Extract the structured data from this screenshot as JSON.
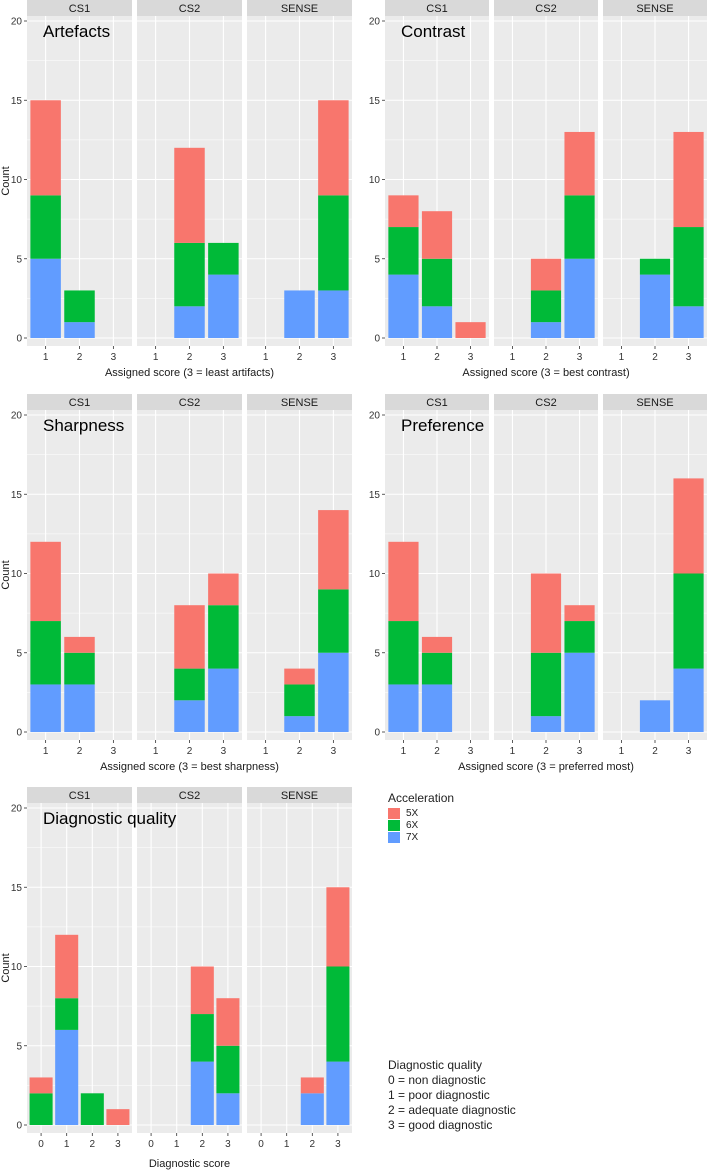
{
  "colors": {
    "5X": "#f8766d",
    "6X": "#00ba38",
    "7X": "#619cff"
  },
  "legend": {
    "title": "Acceleration",
    "items": [
      {
        "label": "5X",
        "color": "#f8766d"
      },
      {
        "label": "6X",
        "color": "#00ba38"
      },
      {
        "label": "7X",
        "color": "#619cff"
      }
    ]
  },
  "dq_legend": {
    "title": "Diagnostic quality",
    "lines": [
      "0 = non diagnostic",
      "1 = poor diagnostic",
      "2 = adequate diagnostic",
      "3 = good diagnostic"
    ]
  },
  "chart_data": [
    {
      "type": "bar",
      "stacked": true,
      "title": "Artefacts",
      "xlabel": "Assigned score (3 = least artifacts)",
      "ylabel": "Count",
      "ylim": [
        0,
        20
      ],
      "yticks": [
        0,
        5,
        10,
        15,
        20
      ],
      "categories": [
        "1",
        "2",
        "3"
      ],
      "facets": [
        {
          "name": "CS1",
          "series": {
            "7X": [
              5,
              1,
              0
            ],
            "6X": [
              4,
              2,
              0
            ],
            "5X": [
              6,
              0,
              0
            ]
          }
        },
        {
          "name": "CS2",
          "series": {
            "7X": [
              0,
              2,
              4
            ],
            "6X": [
              0,
              4,
              2
            ],
            "5X": [
              0,
              6,
              0
            ]
          }
        },
        {
          "name": "SENSE",
          "series": {
            "7X": [
              0,
              3,
              3
            ],
            "6X": [
              0,
              0,
              6
            ],
            "5X": [
              0,
              0,
              6
            ]
          }
        }
      ]
    },
    {
      "type": "bar",
      "stacked": true,
      "title": "Contrast",
      "xlabel": "Assigned score (3 = best contrast)",
      "ylabel": "",
      "ylim": [
        0,
        20
      ],
      "yticks": [
        0,
        5,
        10,
        15,
        20
      ],
      "categories": [
        "1",
        "2",
        "3"
      ],
      "facets": [
        {
          "name": "CS1",
          "series": {
            "7X": [
              4,
              2,
              0
            ],
            "6X": [
              3,
              3,
              0
            ],
            "5X": [
              2,
              3,
              1
            ]
          }
        },
        {
          "name": "CS2",
          "series": {
            "7X": [
              0,
              1,
              5
            ],
            "6X": [
              0,
              2,
              4
            ],
            "5X": [
              0,
              2,
              4
            ]
          }
        },
        {
          "name": "SENSE",
          "series": {
            "7X": [
              0,
              4,
              2
            ],
            "6X": [
              0,
              1,
              5
            ],
            "5X": [
              0,
              0,
              6
            ]
          }
        }
      ]
    },
    {
      "type": "bar",
      "stacked": true,
      "title": "Sharpness",
      "xlabel": "Assigned score (3 = best sharpness)",
      "ylabel": "Count",
      "ylim": [
        0,
        20
      ],
      "yticks": [
        0,
        5,
        10,
        15,
        20
      ],
      "categories": [
        "1",
        "2",
        "3"
      ],
      "facets": [
        {
          "name": "CS1",
          "series": {
            "7X": [
              3,
              3,
              0
            ],
            "6X": [
              4,
              2,
              0
            ],
            "5X": [
              5,
              1,
              0
            ]
          }
        },
        {
          "name": "CS2",
          "series": {
            "7X": [
              0,
              2,
              4
            ],
            "6X": [
              0,
              2,
              4
            ],
            "5X": [
              0,
              4,
              2
            ]
          }
        },
        {
          "name": "SENSE",
          "series": {
            "7X": [
              0,
              1,
              5
            ],
            "6X": [
              0,
              2,
              4
            ],
            "5X": [
              0,
              1,
              5
            ]
          }
        }
      ]
    },
    {
      "type": "bar",
      "stacked": true,
      "title": "Preference",
      "xlabel": "Assigned score (3 = preferred most)",
      "ylabel": "",
      "ylim": [
        0,
        20
      ],
      "yticks": [
        0,
        5,
        10,
        15,
        20
      ],
      "categories": [
        "1",
        "2",
        "3"
      ],
      "facets": [
        {
          "name": "CS1",
          "series": {
            "7X": [
              3,
              3,
              0
            ],
            "6X": [
              4,
              2,
              0
            ],
            "5X": [
              5,
              1,
              0
            ]
          }
        },
        {
          "name": "CS2",
          "series": {
            "7X": [
              0,
              1,
              5
            ],
            "6X": [
              0,
              4,
              2
            ],
            "5X": [
              0,
              5,
              1
            ]
          }
        },
        {
          "name": "SENSE",
          "series": {
            "7X": [
              0,
              2,
              4
            ],
            "6X": [
              0,
              0,
              6
            ],
            "5X": [
              0,
              0,
              6
            ]
          }
        }
      ]
    },
    {
      "type": "bar",
      "stacked": true,
      "title": "Diagnostic quality",
      "xlabel": "Diagnostic score",
      "ylabel": "Count",
      "ylim": [
        0,
        20
      ],
      "yticks": [
        0,
        5,
        10,
        15,
        20
      ],
      "categories": [
        "0",
        "1",
        "2",
        "3"
      ],
      "facets": [
        {
          "name": "CS1",
          "series": {
            "7X": [
              0,
              6,
              0,
              0
            ],
            "6X": [
              2,
              2,
              2,
              0
            ],
            "5X": [
              1,
              4,
              0,
              1
            ]
          }
        },
        {
          "name": "CS2",
          "series": {
            "7X": [
              0,
              0,
              4,
              2
            ],
            "6X": [
              0,
              0,
              3,
              3
            ],
            "5X": [
              0,
              0,
              3,
              3
            ]
          }
        },
        {
          "name": "SENSE",
          "series": {
            "7X": [
              0,
              0,
              2,
              4
            ],
            "6X": [
              0,
              0,
              0,
              6
            ],
            "5X": [
              0,
              0,
              1,
              5
            ]
          }
        }
      ]
    }
  ]
}
